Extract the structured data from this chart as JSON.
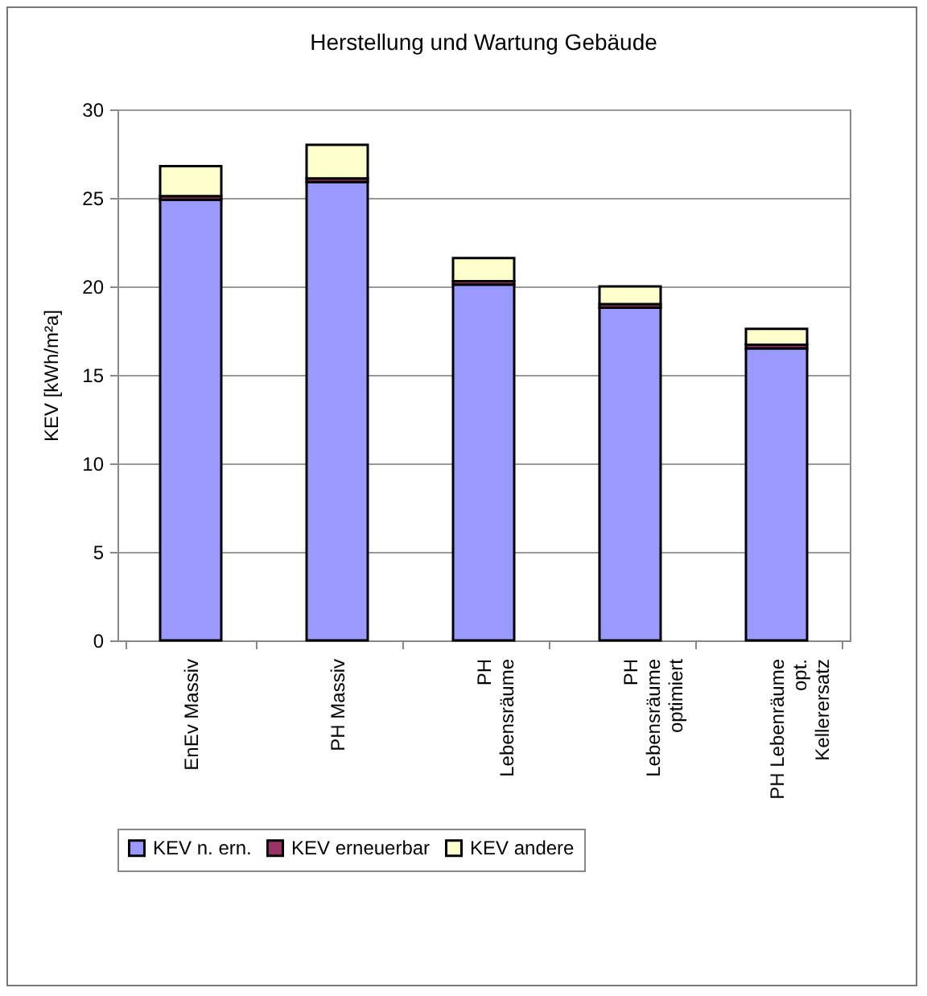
{
  "chart_data": {
    "type": "bar",
    "title": "Herstellung und Wartung Gebäude",
    "ylabel": "KEV [kWh/m²a]",
    "categories": [
      "EnEv Massiv",
      "PH Massiv",
      "PH Lebensräume",
      "PH Lebensräume optimiert",
      "PH Lebenräume opt. Kellerersatz"
    ],
    "stacked": true,
    "series": [
      {
        "name": "KEV n. ern.",
        "color": "#9999ff",
        "values": [
          24.9,
          25.9,
          20.1,
          18.8,
          16.5
        ]
      },
      {
        "name": "KEV erneuerbar",
        "color": "#993366",
        "values": [
          0.2,
          0.2,
          0.2,
          0.2,
          0.2
        ]
      },
      {
        "name": "KEV andere",
        "color": "#ffffcc",
        "values": [
          1.7,
          1.9,
          1.3,
          1.0,
          0.9
        ]
      }
    ],
    "ylim": [
      0,
      30
    ],
    "yticks": [
      0,
      5,
      10,
      15,
      20,
      25,
      30
    ],
    "grid": "y",
    "legend": "bottom"
  }
}
